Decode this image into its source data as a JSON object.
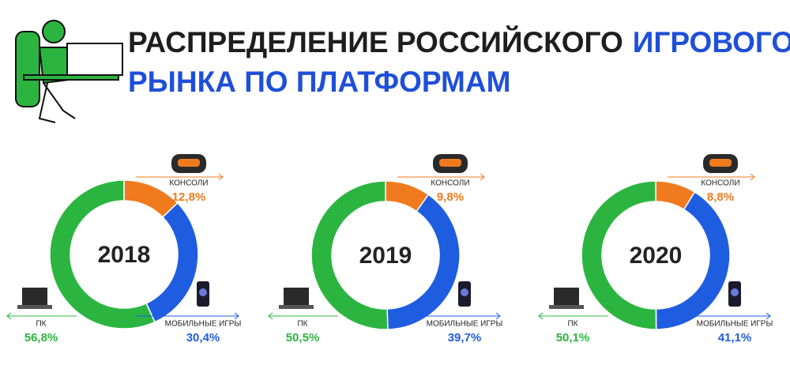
{
  "header": {
    "title_parts": [
      "РАСПРЕДЕЛЕНИЕ РОССИЙСКОГО",
      "ИГРОВОГО",
      "РЫНКА ПО ПЛАТФОРМАМ"
    ]
  },
  "chart_data": [
    {
      "type": "pie",
      "title": "2018",
      "categories": [
        "КОНСОЛИ",
        "МОБИЛЬНЫЕ ИГРЫ",
        "ПК"
      ],
      "values": [
        12.8,
        30.4,
        56.8
      ],
      "value_labels": [
        "12,8%",
        "30,4%",
        "56,8%"
      ],
      "colors": [
        "#f07a1e",
        "#1f5de0",
        "#2bb540"
      ]
    },
    {
      "type": "pie",
      "title": "2019",
      "categories": [
        "КОНСОЛИ",
        "МОБИЛЬНЫЕ ИГРЫ",
        "ПК"
      ],
      "values": [
        9.8,
        39.7,
        50.5
      ],
      "value_labels": [
        "9,8%",
        "39,7%",
        "50,5%"
      ],
      "colors": [
        "#f07a1e",
        "#1f5de0",
        "#2bb540"
      ]
    },
    {
      "type": "pie",
      "title": "2020",
      "categories": [
        "КОНСОЛИ",
        "МОБИЛЬНЫЕ ИГРЫ",
        "ПК"
      ],
      "values": [
        8.8,
        41.1,
        50.1
      ],
      "value_labels": [
        "8,8%",
        "41,1%",
        "50,1%"
      ],
      "colors": [
        "#f07a1e",
        "#1f5de0",
        "#2bb540"
      ]
    }
  ]
}
